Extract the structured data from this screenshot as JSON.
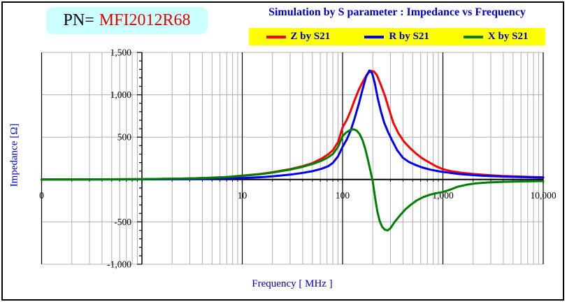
{
  "header": {
    "pn_label": "PN=",
    "pn_value": "MFI2012R68",
    "title": "Simulation by S parameter : Impedance vs Frequency"
  },
  "legend": {
    "items": [
      {
        "label": "Z by S21",
        "color": "#ff0000"
      },
      {
        "label": "R by S21",
        "color": "#0000ee"
      },
      {
        "label": "X by S21",
        "color": "#008000"
      }
    ]
  },
  "axes": {
    "x": {
      "title": "Frequency [ MHz ]",
      "scale": "log",
      "min": 0.1,
      "max": 10000,
      "tick_values": [
        0.1,
        10,
        100,
        1000,
        10000
      ],
      "tick_labels": [
        "0",
        "10",
        "100",
        "1,000",
        "10,000"
      ]
    },
    "y": {
      "title": "Impedance [Ω]",
      "min": -1000,
      "max": 1500,
      "major_step": 500,
      "minor_step": 100,
      "tick_values": [
        1500,
        1000,
        500,
        -500,
        -1000
      ],
      "tick_labels": [
        "1,500",
        "1,000",
        "500",
        "-500",
        "-1,000"
      ]
    }
  },
  "colors": {
    "accent_blue": "#0000cc",
    "pn_red": "#e60000",
    "pn_bg": "#ccffff",
    "legend_bg": "#ffff00",
    "grid_gray": "#b0b0b0",
    "axis_black": "#000000"
  },
  "chart_data": {
    "type": "line",
    "title": "Simulation by S parameter : Impedance vs Frequency",
    "xlabel": "Frequency [ MHz ]",
    "ylabel": "Impedance [Ω]",
    "x_scale": "log",
    "xlim": [
      0.1,
      10000
    ],
    "ylim": [
      -1000,
      1500
    ],
    "grid": true,
    "legend_position": "top",
    "series": [
      {
        "name": "Z by S21",
        "color": "#ff0000",
        "points": [
          [
            0.1,
            1
          ],
          [
            0.3,
            1.5
          ],
          [
            1,
            4
          ],
          [
            2,
            8
          ],
          [
            4,
            17
          ],
          [
            7,
            30
          ],
          [
            10,
            45
          ],
          [
            15,
            65
          ],
          [
            20,
            86
          ],
          [
            30,
            122
          ],
          [
            40,
            158
          ],
          [
            50,
            193
          ],
          [
            62,
            248
          ],
          [
            72,
            298
          ],
          [
            80,
            345
          ],
          [
            90,
            440
          ],
          [
            100,
            615
          ],
          [
            110,
            702
          ],
          [
            120,
            806
          ],
          [
            130,
            920
          ],
          [
            145,
            1060
          ],
          [
            160,
            1160
          ],
          [
            175,
            1242
          ],
          [
            190,
            1282
          ],
          [
            205,
            1276
          ],
          [
            220,
            1232
          ],
          [
            240,
            1120
          ],
          [
            265,
            985
          ],
          [
            290,
            830
          ],
          [
            320,
            672
          ],
          [
            360,
            548
          ],
          [
            410,
            446
          ],
          [
            470,
            372
          ],
          [
            540,
            306
          ],
          [
            620,
            252
          ],
          [
            720,
            206
          ],
          [
            850,
            158
          ],
          [
            1000,
            122
          ],
          [
            1200,
            99
          ],
          [
            1500,
            81
          ],
          [
            2000,
            65
          ],
          [
            2800,
            52
          ],
          [
            4000,
            42
          ],
          [
            6000,
            35
          ],
          [
            8000,
            30
          ],
          [
            10000,
            27
          ]
        ]
      },
      {
        "name": "R by S21",
        "color": "#0000ee",
        "points": [
          [
            0.1,
            0.3
          ],
          [
            0.3,
            0.5
          ],
          [
            1,
            1.5
          ],
          [
            2,
            3
          ],
          [
            4,
            7
          ],
          [
            7,
            12
          ],
          [
            10,
            17
          ],
          [
            15,
            27
          ],
          [
            20,
            37
          ],
          [
            30,
            58
          ],
          [
            40,
            78
          ],
          [
            50,
            98
          ],
          [
            62,
            128
          ],
          [
            72,
            158
          ],
          [
            80,
            196
          ],
          [
            90,
            272
          ],
          [
            100,
            386
          ],
          [
            110,
            470
          ],
          [
            120,
            574
          ],
          [
            130,
            700
          ],
          [
            145,
            892
          ],
          [
            160,
            1086
          ],
          [
            172,
            1216
          ],
          [
            185,
            1286
          ],
          [
            197,
            1256
          ],
          [
            210,
            1132
          ],
          [
            225,
            952
          ],
          [
            240,
            812
          ],
          [
            260,
            672
          ],
          [
            285,
            556
          ],
          [
            310,
            468
          ],
          [
            350,
            346
          ],
          [
            400,
            256
          ],
          [
            460,
            206
          ],
          [
            530,
            173
          ],
          [
            620,
            143
          ],
          [
            750,
            116
          ],
          [
            900,
            98
          ],
          [
            1100,
            83
          ],
          [
            1400,
            67
          ],
          [
            1800,
            56
          ],
          [
            2400,
            46
          ],
          [
            3300,
            39
          ],
          [
            4700,
            32
          ],
          [
            7000,
            27
          ],
          [
            10000,
            22
          ]
        ]
      },
      {
        "name": "X by S21",
        "color": "#008000",
        "points": [
          [
            0.1,
            0.4
          ],
          [
            0.3,
            1.3
          ],
          [
            1,
            4.3
          ],
          [
            3,
            13
          ],
          [
            5,
            21
          ],
          [
            7,
            30
          ],
          [
            10,
            43
          ],
          [
            15,
            63
          ],
          [
            20,
            82
          ],
          [
            30,
            117
          ],
          [
            40,
            150
          ],
          [
            50,
            182
          ],
          [
            62,
            223
          ],
          [
            72,
            263
          ],
          [
            80,
            300
          ],
          [
            90,
            384
          ],
          [
            100,
            512
          ],
          [
            108,
            552
          ],
          [
            118,
            582
          ],
          [
            128,
            593
          ],
          [
            138,
            578
          ],
          [
            148,
            536
          ],
          [
            158,
            466
          ],
          [
            168,
            366
          ],
          [
            178,
            246
          ],
          [
            188,
            122
          ],
          [
            196,
            25
          ],
          [
            200,
            -25
          ],
          [
            206,
            -130
          ],
          [
            213,
            -245
          ],
          [
            222,
            -375
          ],
          [
            234,
            -488
          ],
          [
            248,
            -558
          ],
          [
            264,
            -592
          ],
          [
            282,
            -600
          ],
          [
            300,
            -574
          ],
          [
            330,
            -502
          ],
          [
            370,
            -430
          ],
          [
            420,
            -356
          ],
          [
            480,
            -296
          ],
          [
            550,
            -246
          ],
          [
            640,
            -206
          ],
          [
            760,
            -176
          ],
          [
            900,
            -157
          ],
          [
            1000,
            -148
          ],
          [
            1200,
            -116
          ],
          [
            1400,
            -86
          ],
          [
            1700,
            -63
          ],
          [
            2100,
            -46
          ],
          [
            2800,
            -35
          ],
          [
            4000,
            -27
          ],
          [
            6000,
            -22
          ],
          [
            10000,
            -18
          ]
        ]
      }
    ]
  }
}
